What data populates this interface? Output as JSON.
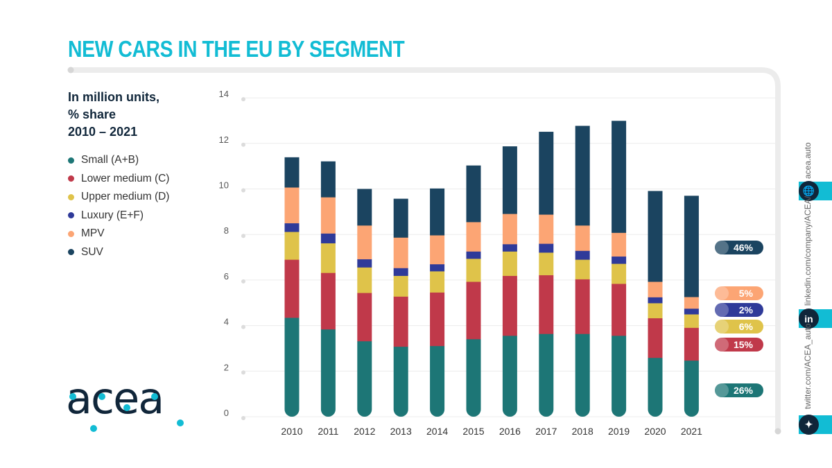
{
  "title": "NEW CARS IN THE EU BY SEGMENT",
  "subtitle": [
    "In million units,",
    "% share",
    "2010 – 2021"
  ],
  "logo_text": "acea",
  "social": {
    "website": "acea.auto",
    "linkedin": "linkedin.com/company/ACEA/",
    "twitter": "twitter.com/ACEA_auto",
    "linkedin_glyph": "in"
  },
  "chart_data": {
    "type": "bar",
    "stacked": true,
    "title": "NEW CARS IN THE EU BY SEGMENT",
    "ylabel": "In million units",
    "ylim": [
      0,
      14
    ],
    "yticks": [
      0,
      2,
      4,
      6,
      8,
      10,
      12,
      14
    ],
    "grid": true,
    "legend_position": "left",
    "categories": [
      "2010",
      "2011",
      "2012",
      "2013",
      "2014",
      "2015",
      "2016",
      "2017",
      "2018",
      "2019",
      "2020",
      "2021"
    ],
    "series": [
      {
        "name": "Small (A+B)",
        "color": "#1d7676",
        "share_2021": "26%",
        "values": [
          4.35,
          3.84,
          3.32,
          3.08,
          3.11,
          3.41,
          3.56,
          3.64,
          3.64,
          3.56,
          2.59,
          2.47
        ]
      },
      {
        "name": "Lower medium (C)",
        "color": "#c0394a",
        "share_2021": "15%",
        "values": [
          2.55,
          2.48,
          2.12,
          2.2,
          2.35,
          2.52,
          2.63,
          2.58,
          2.4,
          2.28,
          1.74,
          1.44
        ]
      },
      {
        "name": "Upper medium (D)",
        "color": "#dfc34a",
        "share_2021": "6%",
        "values": [
          1.22,
          1.3,
          1.12,
          0.91,
          0.93,
          1.01,
          1.07,
          0.99,
          0.86,
          0.88,
          0.66,
          0.59
        ]
      },
      {
        "name": "Luxury (E+F)",
        "color": "#2f3a99",
        "share_2021": "2%",
        "values": [
          0.38,
          0.43,
          0.36,
          0.34,
          0.31,
          0.32,
          0.32,
          0.39,
          0.39,
          0.32,
          0.26,
          0.25
        ]
      },
      {
        "name": "MPV",
        "color": "#fca574",
        "share_2021": "5%",
        "values": [
          1.57,
          1.59,
          1.48,
          1.34,
          1.27,
          1.29,
          1.33,
          1.28,
          1.11,
          1.04,
          0.68,
          0.51
        ]
      },
      {
        "name": "SUV",
        "color": "#1b4460",
        "share_2021": "46%",
        "values": [
          1.32,
          1.57,
          1.6,
          1.7,
          2.05,
          2.48,
          2.96,
          3.63,
          4.37,
          4.91,
          3.98,
          4.44
        ]
      }
    ]
  }
}
